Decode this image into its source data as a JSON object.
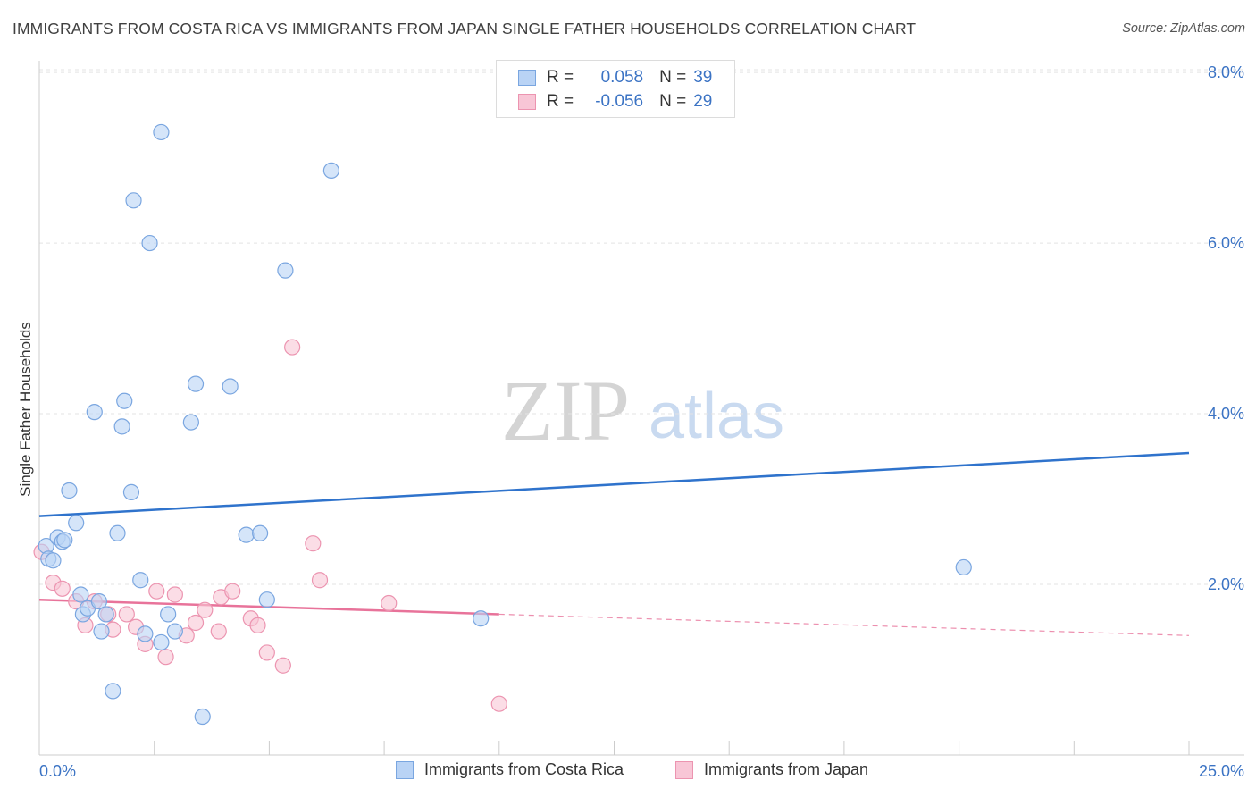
{
  "title": "IMMIGRANTS FROM COSTA RICA VS IMMIGRANTS FROM JAPAN SINGLE FATHER HOUSEHOLDS CORRELATION CHART",
  "source": "Source: ZipAtlas.com",
  "watermark": {
    "zip": "ZIP",
    "atlas": "atlas"
  },
  "colors": {
    "costa_rica_fill": "#b9d3f5",
    "costa_rica_stroke": "#7aa6e0",
    "costa_rica_line": "#2f73cc",
    "japan_fill": "#f8c6d6",
    "japan_stroke": "#ec94b0",
    "japan_line": "#e8739a",
    "axis_text": "#3b73c4",
    "grid": "#e3e3e3"
  },
  "legend": {
    "costa_rica": {
      "r_label": "R =",
      "r_value": "0.058",
      "n_label": "N =",
      "n_value": "39"
    },
    "japan": {
      "r_label": "R =",
      "r_value": "-0.056",
      "n_label": "N =",
      "n_value": "29"
    }
  },
  "chart_data": {
    "type": "scatter",
    "title": "IMMIGRANTS FROM COSTA RICA VS IMMIGRANTS FROM JAPAN SINGLE FATHER HOUSEHOLDS CORRELATION CHART",
    "xlabel": "",
    "ylabel": "Single Father Households",
    "xlim": [
      0,
      25
    ],
    "ylim": [
      0,
      8.2
    ],
    "x_tick_labels": {
      "left": "0.0%",
      "right": "25.0%"
    },
    "y_ticks": [
      {
        "value": 2,
        "label": "2.0%"
      },
      {
        "value": 4,
        "label": "4.0%"
      },
      {
        "value": 6,
        "label": "6.0%"
      },
      {
        "value": 8,
        "label": "8.0%"
      }
    ],
    "series": [
      {
        "name": "Immigrants from Costa Rica",
        "color_key": "costa_rica",
        "points": [
          [
            0.15,
            2.45
          ],
          [
            0.2,
            2.3
          ],
          [
            0.3,
            2.28
          ],
          [
            0.4,
            2.55
          ],
          [
            0.5,
            2.5
          ],
          [
            0.55,
            2.52
          ],
          [
            0.65,
            3.1
          ],
          [
            0.8,
            2.72
          ],
          [
            0.9,
            1.88
          ],
          [
            0.95,
            1.65
          ],
          [
            1.05,
            1.72
          ],
          [
            1.2,
            4.02
          ],
          [
            1.3,
            1.8
          ],
          [
            1.35,
            1.45
          ],
          [
            1.45,
            1.65
          ],
          [
            1.6,
            0.75
          ],
          [
            1.7,
            2.6
          ],
          [
            1.8,
            3.85
          ],
          [
            1.85,
            4.15
          ],
          [
            2.0,
            3.08
          ],
          [
            2.05,
            6.5
          ],
          [
            2.2,
            2.05
          ],
          [
            2.3,
            1.42
          ],
          [
            2.4,
            6.0
          ],
          [
            2.65,
            7.3
          ],
          [
            2.65,
            1.32
          ],
          [
            2.8,
            1.65
          ],
          [
            2.95,
            1.45
          ],
          [
            3.3,
            3.9
          ],
          [
            3.4,
            4.35
          ],
          [
            3.55,
            0.45
          ],
          [
            4.15,
            4.32
          ],
          [
            4.5,
            2.58
          ],
          [
            4.8,
            2.6
          ],
          [
            4.95,
            1.82
          ],
          [
            5.35,
            5.68
          ],
          [
            6.35,
            6.85
          ],
          [
            9.6,
            1.6
          ],
          [
            20.1,
            2.2
          ]
        ],
        "trend": {
          "x": [
            0,
            25
          ],
          "y": [
            2.8,
            3.54
          ]
        }
      },
      {
        "name": "Immigrants from Japan",
        "color_key": "japan",
        "points": [
          [
            0.05,
            2.38
          ],
          [
            0.3,
            2.02
          ],
          [
            0.5,
            1.95
          ],
          [
            0.8,
            1.8
          ],
          [
            1.0,
            1.52
          ],
          [
            1.2,
            1.8
          ],
          [
            1.5,
            1.65
          ],
          [
            1.6,
            1.47
          ],
          [
            1.9,
            1.65
          ],
          [
            2.1,
            1.5
          ],
          [
            2.3,
            1.3
          ],
          [
            2.55,
            1.92
          ],
          [
            2.75,
            1.15
          ],
          [
            2.95,
            1.88
          ],
          [
            3.2,
            1.4
          ],
          [
            3.4,
            1.55
          ],
          [
            3.6,
            1.7
          ],
          [
            3.9,
            1.45
          ],
          [
            3.95,
            1.85
          ],
          [
            4.2,
            1.92
          ],
          [
            4.6,
            1.6
          ],
          [
            4.75,
            1.52
          ],
          [
            4.95,
            1.2
          ],
          [
            5.3,
            1.05
          ],
          [
            5.5,
            4.78
          ],
          [
            5.95,
            2.48
          ],
          [
            6.1,
            2.05
          ],
          [
            7.6,
            1.78
          ],
          [
            10.0,
            0.6
          ]
        ],
        "trend_solid": {
          "x": [
            0,
            10
          ],
          "y": [
            1.82,
            1.65
          ]
        },
        "trend_dashed": {
          "x": [
            10,
            25
          ],
          "y": [
            1.65,
            1.4
          ]
        }
      }
    ]
  },
  "bottom_legend": {
    "costa_rica": "Immigrants from Costa Rica",
    "japan": "Immigrants from Japan"
  }
}
